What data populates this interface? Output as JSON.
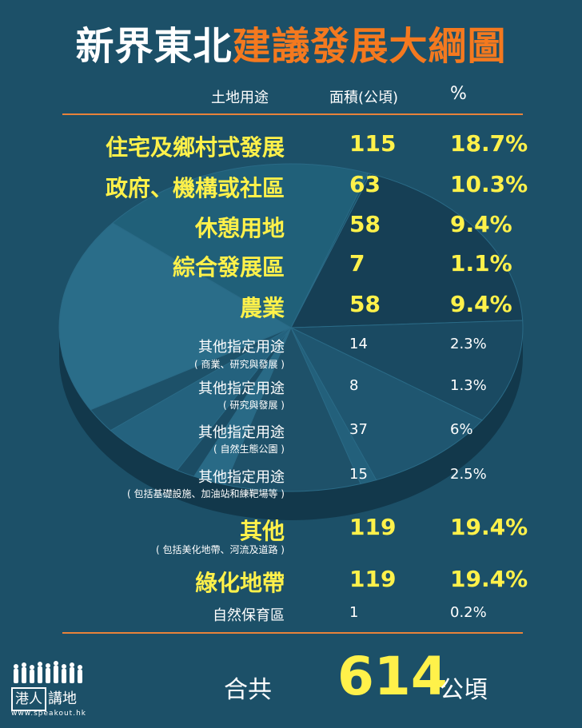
{
  "title": {
    "part1": "新界東北",
    "part2": "建議發展大綱圖"
  },
  "header": {
    "col_use": "土地用途",
    "col_area": "面積(公頃)",
    "col_pct": "%"
  },
  "chart_data": {
    "type": "table",
    "columns": [
      "土地用途",
      "面積(公頃)",
      "%"
    ],
    "rows": [
      {
        "use": "住宅及鄉村式發展",
        "note": "",
        "area": 115,
        "area_text": "115",
        "pct_text": "18.7%",
        "style": "major"
      },
      {
        "use": "政府、機構或社區",
        "note": "",
        "area": 63,
        "area_text": "63",
        "pct_text": "10.3%",
        "style": "major"
      },
      {
        "use": "休憩用地",
        "note": "",
        "area": 58,
        "area_text": "58",
        "pct_text": "9.4%",
        "style": "major"
      },
      {
        "use": "綜合發展區",
        "note": "",
        "area": 7,
        "area_text": "7",
        "pct_text": "1.1%",
        "style": "major"
      },
      {
        "use": "農業",
        "note": "",
        "area": 58,
        "area_text": "58",
        "pct_text": "9.4%",
        "style": "major"
      },
      {
        "use": "其他指定用途",
        "note": "( 商業、研究與發展 )",
        "area": 14,
        "area_text": "14",
        "pct_text": "2.3%",
        "style": "minor"
      },
      {
        "use": "其他指定用途",
        "note": "( 研究與發展 )",
        "area": 8,
        "area_text": "8",
        "pct_text": "1.3%",
        "style": "minor"
      },
      {
        "use": "其他指定用途",
        "note": "( 自然生態公園 )",
        "area": 37,
        "area_text": "37",
        "pct_text": "6%",
        "style": "minor"
      },
      {
        "use": "其他指定用途",
        "note": "( 包括基礎設施、加油站和練靶場等 )",
        "area": 15,
        "area_text": "15",
        "pct_text": "2.5%",
        "style": "minor"
      },
      {
        "use": "其他",
        "note": "( 包括美化地帶、河流及道路 )",
        "area": 119,
        "area_text": "119",
        "pct_text": "19.4%",
        "style": "major"
      },
      {
        "use": "綠化地帶",
        "note": "",
        "area": 119,
        "area_text": "119",
        "pct_text": "19.4%",
        "style": "major"
      },
      {
        "use": "自然保育區",
        "note": "",
        "area": 1,
        "area_text": "1",
        "pct_text": "0.2%",
        "style": "minor"
      }
    ],
    "background_pie_values": [
      115,
      63,
      58,
      7,
      58,
      14,
      8,
      37,
      15,
      119,
      119,
      1
    ]
  },
  "total": {
    "label": "合共",
    "value": "614",
    "unit": "公頃"
  },
  "logo": {
    "text_box": "港人",
    "text_side": "講地",
    "url": "www.speakout.hk"
  },
  "colors": {
    "background": "#1c5068",
    "accent_orange": "#f4791f",
    "highlight_yellow": "#fff14a",
    "rule": "#e8823a"
  }
}
